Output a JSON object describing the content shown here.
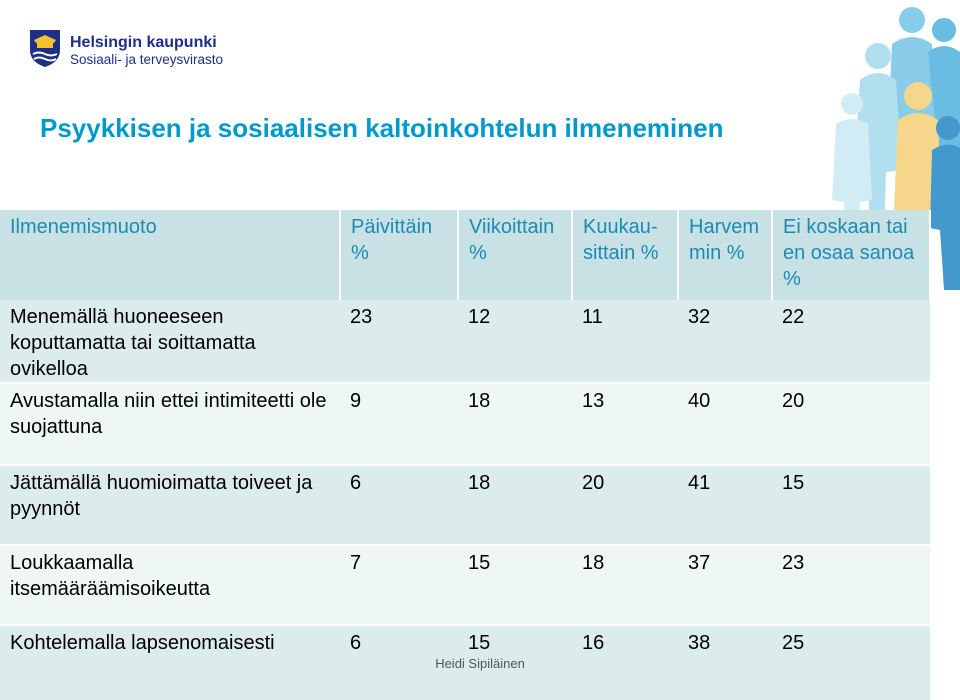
{
  "header": {
    "org_name": "Helsingin kaupunki",
    "dept_name": "Sosiaali- ja terveysvirasto"
  },
  "title": "Psyykkisen ja sosiaalisen kaltoinkohtelun ilmeneminen",
  "table": {
    "columns": [
      "Ilmenemismuoto",
      "Päivittäin %",
      "Viikoittain %",
      "Kuukau-sittain %",
      "Harvem min %",
      "Ei koskaan tai en osaa sanoa %"
    ],
    "rows": [
      {
        "label": "Menemällä huoneeseen koputtamatta tai soittamatta ovikelloa",
        "values": [
          "23",
          "12",
          "11",
          "32",
          "22"
        ]
      },
      {
        "label": "Avustamalla niin ettei intimiteetti ole suojattuna",
        "values": [
          "9",
          "18",
          "13",
          "40",
          "20"
        ]
      },
      {
        "label": "Jättämällä huomioimatta toiveet ja pyynnöt",
        "values": [
          "6",
          "18",
          "20",
          "41",
          "15"
        ]
      },
      {
        "label": "Loukkaamalla itsemääräämisoikeutta",
        "values": [
          "7",
          "15",
          "18",
          "37",
          "23"
        ]
      },
      {
        "label": "Kohtelemalla lapsenomaisesti",
        "values": [
          "6",
          "15",
          "16",
          "38",
          "25"
        ]
      }
    ]
  },
  "footer": "Heidi Sipiläinen",
  "colors": {
    "title": "#0099cc",
    "header_bg": "#c7e1e4",
    "header_text": "#1c8bb4",
    "row_dark": "#dceced",
    "row_light": "#eef6f6",
    "brand_blue": "#1f2e86"
  }
}
